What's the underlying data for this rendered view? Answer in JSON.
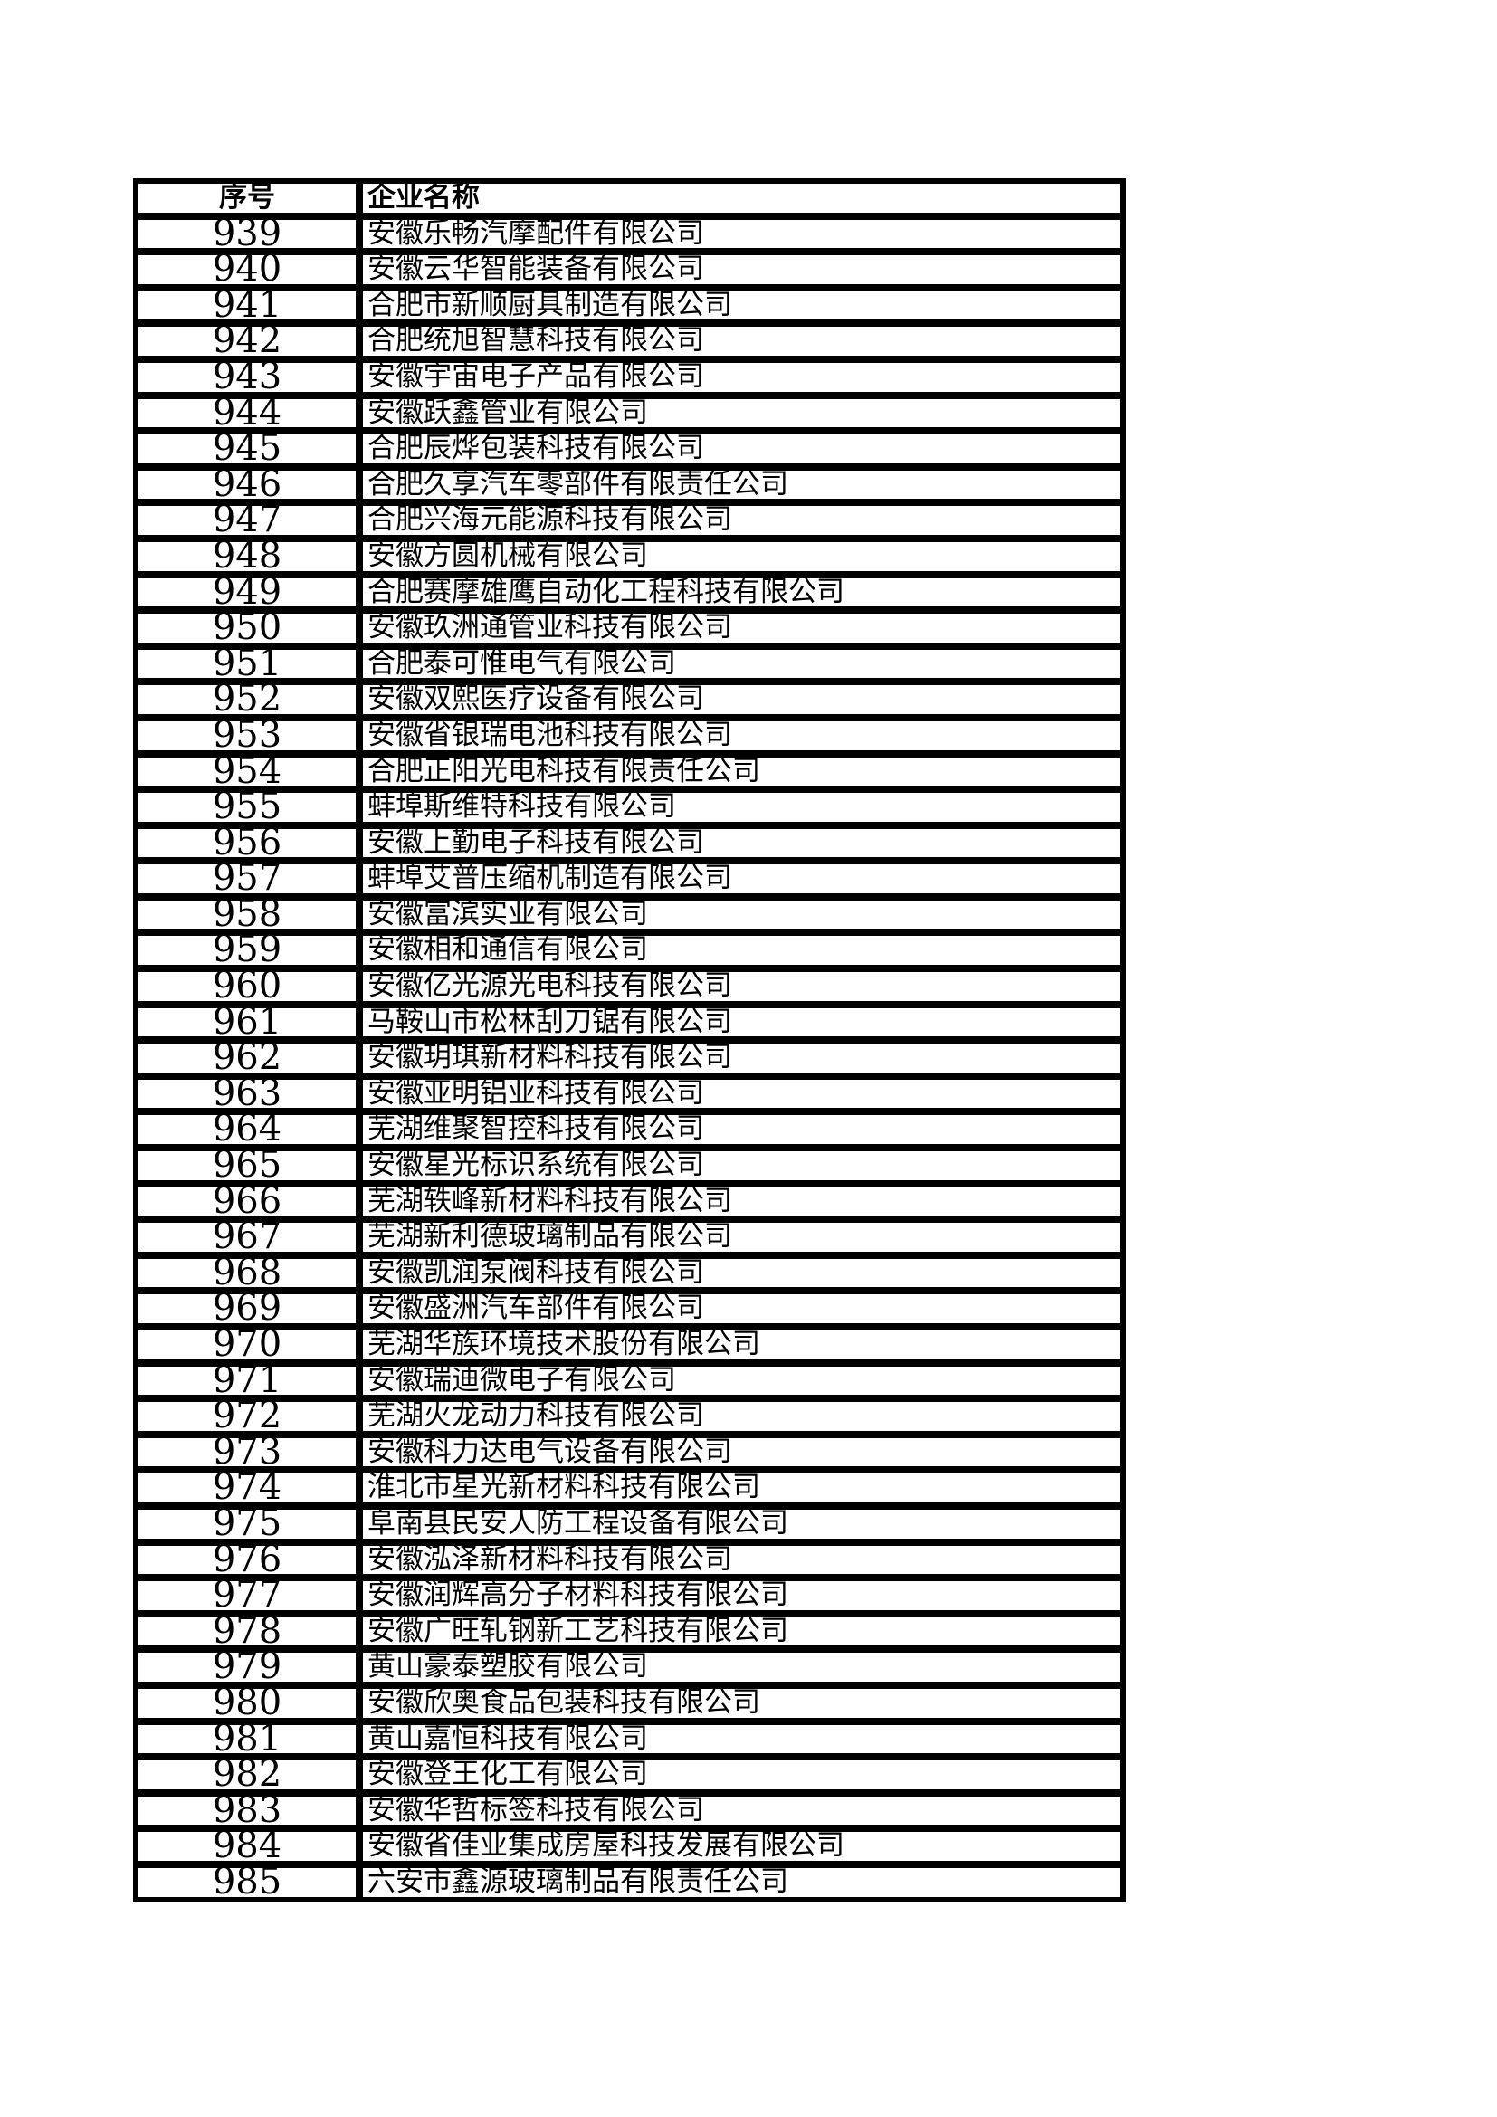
{
  "page": {
    "background_color": "#ffffff",
    "text_color": "#000000",
    "border_color": "#000000"
  },
  "table": {
    "headers": [
      "序号",
      "企业名称"
    ],
    "rows": [
      {
        "no": "939",
        "name": "安徽乐畅汽摩配件有限公司"
      },
      {
        "no": "940",
        "name": "安徽云华智能装备有限公司"
      },
      {
        "no": "941",
        "name": "合肥市新顺厨具制造有限公司"
      },
      {
        "no": "942",
        "name": "合肥统旭智慧科技有限公司"
      },
      {
        "no": "943",
        "name": "安徽宇宙电子产品有限公司"
      },
      {
        "no": "944",
        "name": "安徽跃鑫管业有限公司"
      },
      {
        "no": "945",
        "name": "合肥辰烨包装科技有限公司"
      },
      {
        "no": "946",
        "name": "合肥久享汽车零部件有限责任公司"
      },
      {
        "no": "947",
        "name": "合肥兴海元能源科技有限公司"
      },
      {
        "no": "948",
        "name": "安徽方圆机械有限公司"
      },
      {
        "no": "949",
        "name": "合肥赛摩雄鹰自动化工程科技有限公司"
      },
      {
        "no": "950",
        "name": "安徽玖洲通管业科技有限公司"
      },
      {
        "no": "951",
        "name": "合肥泰可惟电气有限公司"
      },
      {
        "no": "952",
        "name": "安徽双熙医疗设备有限公司"
      },
      {
        "no": "953",
        "name": "安徽省银瑞电池科技有限公司"
      },
      {
        "no": "954",
        "name": "合肥正阳光电科技有限责任公司"
      },
      {
        "no": "955",
        "name": "蚌埠斯维特科技有限公司"
      },
      {
        "no": "956",
        "name": "安徽上勤电子科技有限公司"
      },
      {
        "no": "957",
        "name": "蚌埠艾普压缩机制造有限公司"
      },
      {
        "no": "958",
        "name": "安徽富滨实业有限公司"
      },
      {
        "no": "959",
        "name": "安徽相和通信有限公司"
      },
      {
        "no": "960",
        "name": "安徽亿光源光电科技有限公司"
      },
      {
        "no": "961",
        "name": "马鞍山市松林刮刀锯有限公司"
      },
      {
        "no": "962",
        "name": "安徽玥琪新材料科技有限公司"
      },
      {
        "no": "963",
        "name": "安徽亚明铝业科技有限公司"
      },
      {
        "no": "964",
        "name": "芜湖维聚智控科技有限公司"
      },
      {
        "no": "965",
        "name": "安徽星光标识系统有限公司"
      },
      {
        "no": "966",
        "name": "芜湖轶峰新材料科技有限公司"
      },
      {
        "no": "967",
        "name": "芜湖新利德玻璃制品有限公司"
      },
      {
        "no": "968",
        "name": "安徽凯润泵阀科技有限公司"
      },
      {
        "no": "969",
        "name": "安徽盛洲汽车部件有限公司"
      },
      {
        "no": "970",
        "name": "芜湖华族环境技术股份有限公司"
      },
      {
        "no": "971",
        "name": "安徽瑞迪微电子有限公司"
      },
      {
        "no": "972",
        "name": "芜湖火龙动力科技有限公司"
      },
      {
        "no": "973",
        "name": "安徽科力达电气设备有限公司"
      },
      {
        "no": "974",
        "name": "淮北市星光新材料科技有限公司"
      },
      {
        "no": "975",
        "name": "阜南县民安人防工程设备有限公司"
      },
      {
        "no": "976",
        "name": "安徽泓泽新材料科技有限公司"
      },
      {
        "no": "977",
        "name": "安徽润辉高分子材料科技有限公司"
      },
      {
        "no": "978",
        "name": "安徽广旺轧钢新工艺科技有限公司"
      },
      {
        "no": "979",
        "name": "黄山豪泰塑胶有限公司"
      },
      {
        "no": "980",
        "name": "安徽欣奥食品包装科技有限公司"
      },
      {
        "no": "981",
        "name": "黄山嘉恒科技有限公司"
      },
      {
        "no": "982",
        "name": "安徽登王化工有限公司"
      },
      {
        "no": "983",
        "name": "安徽华哲标签科技有限公司"
      },
      {
        "no": "984",
        "name": "安徽省佳业集成房屋科技发展有限公司"
      },
      {
        "no": "985",
        "name": "六安市鑫源玻璃制品有限责任公司"
      }
    ]
  }
}
